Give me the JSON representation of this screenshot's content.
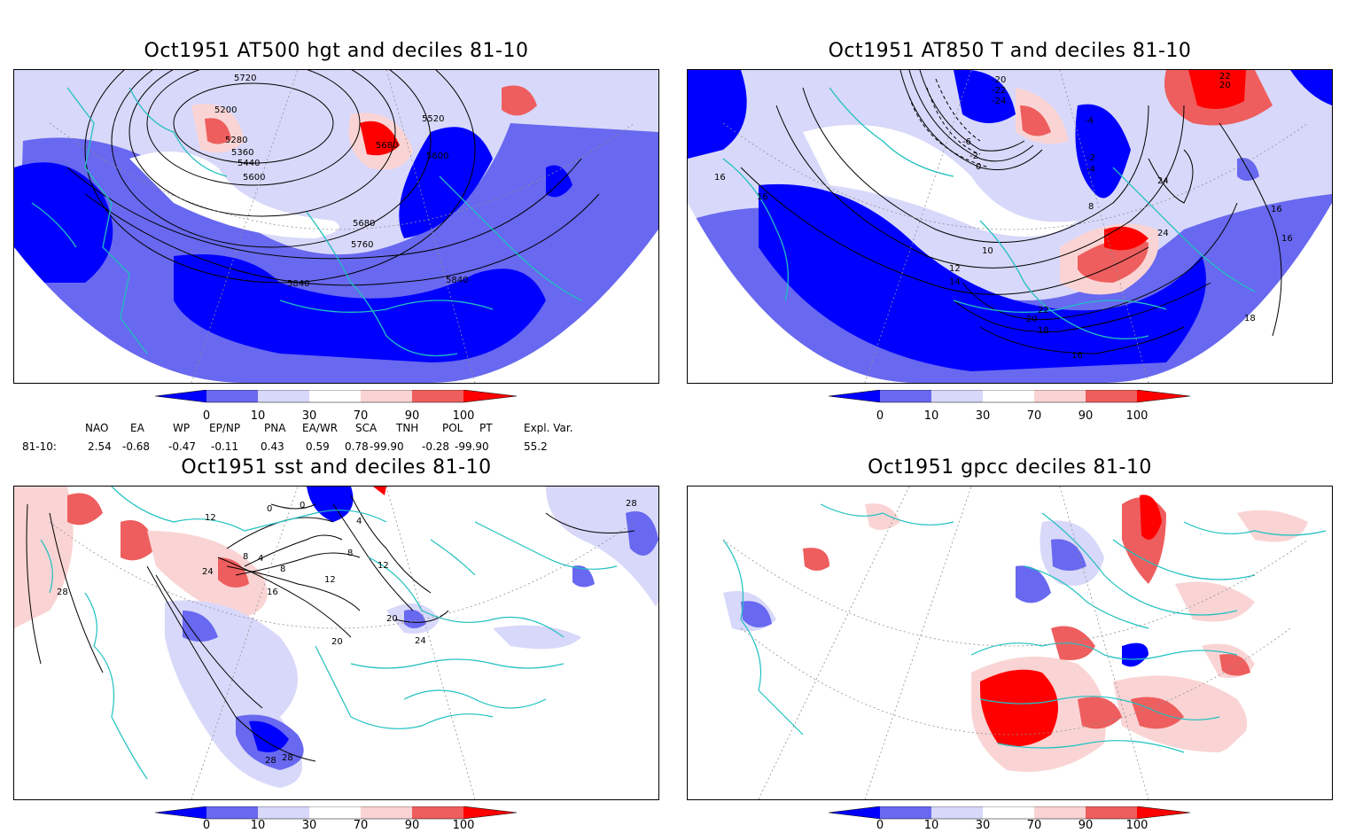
{
  "panels": [
    {
      "id": "p1",
      "title": "Oct1951 AT500 hgt and deciles 81-10",
      "contour_labels": [
        "5720",
        "5200",
        "5520",
        "5280",
        "5680",
        "5360",
        "5440",
        "5600",
        "5600",
        "5680",
        "5760",
        "5840",
        "5840"
      ]
    },
    {
      "id": "p2",
      "title": "Oct1951 AT850 T and deciles 81-10",
      "contour_labels": [
        "-20",
        "-22",
        "-24",
        "-4",
        "-6",
        "-2",
        "0",
        "-2",
        "-4",
        "24",
        "8",
        "10",
        "12",
        "14",
        "16",
        "16",
        "18",
        "20",
        "22",
        "22",
        "24",
        "16",
        "18",
        "16",
        "16",
        "20"
      ]
    },
    {
      "id": "p3",
      "title": "Oct1951 sst and deciles 81-10",
      "contour_labels": [
        "28",
        "12",
        "8",
        "4",
        "0",
        "8",
        "12",
        "16",
        "20",
        "24",
        "24",
        "20",
        "28",
        "28",
        "28",
        "0",
        "4",
        "8",
        "12"
      ]
    },
    {
      "id": "p4",
      "title": "Oct1951 gpcc deciles 81-10",
      "contour_labels": []
    }
  ],
  "colorbar": {
    "labels": [
      "0",
      "10",
      "30",
      "70",
      "90",
      "100"
    ],
    "colors": [
      "#0000ff",
      "#6868f0",
      "#d8d8fa",
      "#ffffff",
      "#fad4d4",
      "#ee5e5e",
      "#ff0000"
    ]
  },
  "indices": {
    "headers": [
      "NAO",
      "EA",
      "WP",
      "EP/NP",
      "PNA",
      "EA/WR",
      "SCA",
      "TNH",
      "POL",
      "PT",
      "Expl. Var."
    ],
    "row_label": "81-10:",
    "values": [
      "2.54",
      "-0.68",
      "-0.47",
      "-0.11",
      "0.43",
      "0.59",
      "0.78",
      "-99.90",
      "-0.28",
      "-99.90",
      "55.2"
    ]
  },
  "colors": {
    "coast": "#20c0c0",
    "deep_blue": "#0000ff",
    "mid_blue": "#6868f0",
    "light_blue": "#d8d8fa",
    "light_red": "#fad4d4",
    "mid_red": "#ee5e5e",
    "deep_red": "#ff0000"
  }
}
